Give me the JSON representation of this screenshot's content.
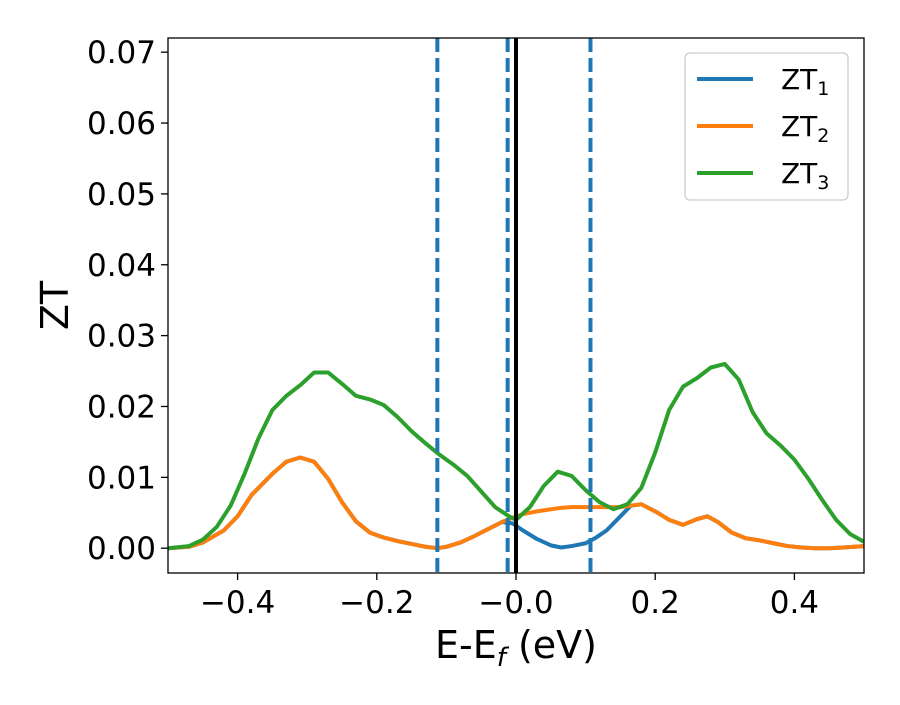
{
  "chart_data": {
    "type": "line",
    "xlabel": "E-E",
    "xlabel_subscript": "f",
    "xlabel_unit": " (eV)",
    "ylabel": "ZT",
    "xlim": [
      -0.5,
      0.5
    ],
    "ylim": [
      -0.0035,
      0.072
    ],
    "x_ticks": [
      -0.4,
      -0.2,
      0.0,
      0.2,
      0.4
    ],
    "x_tick_labels": [
      "−0.4",
      "−0.2",
      "−0.0",
      "0.2",
      "0.4"
    ],
    "y_ticks": [
      0.0,
      0.01,
      0.02,
      0.03,
      0.04,
      0.05,
      0.06,
      0.07
    ],
    "y_tick_labels": [
      "0.00",
      "0.01",
      "0.02",
      "0.03",
      "0.04",
      "0.05",
      "0.06",
      "0.07"
    ],
    "grid": false,
    "legend_position": "top-right",
    "vertical_lines": [
      {
        "x": -0.113,
        "style": "dashed",
        "color": "#1f77b4"
      },
      {
        "x": -0.012,
        "style": "dashed",
        "color": "#1f77b4"
      },
      {
        "x": 0.107,
        "style": "dashed",
        "color": "#1f77b4"
      },
      {
        "x": 0.0,
        "style": "solid",
        "color": "#000000"
      }
    ],
    "series": [
      {
        "name": "ZT",
        "subscript": "1",
        "color": "#1f77b4",
        "x": [
          -0.5,
          -0.47,
          -0.45,
          -0.42,
          -0.4,
          -0.38,
          -0.35,
          -0.33,
          -0.31,
          -0.29,
          -0.27,
          -0.25,
          -0.23,
          -0.21,
          -0.19,
          -0.17,
          -0.15,
          -0.13,
          -0.113,
          -0.1,
          -0.08,
          -0.06,
          -0.04,
          -0.02,
          -0.005,
          0.01,
          0.03,
          0.05,
          0.065,
          0.08,
          0.1,
          0.115,
          0.13,
          0.15,
          0.165,
          0.18,
          0.2,
          0.22,
          0.24,
          0.26,
          0.275,
          0.29,
          0.31,
          0.33,
          0.35,
          0.37,
          0.39,
          0.41,
          0.43,
          0.45,
          0.47,
          0.5
        ],
        "y": [
          0.0,
          0.0002,
          0.0008,
          0.0025,
          0.0045,
          0.0075,
          0.0105,
          0.0122,
          0.0128,
          0.0122,
          0.0098,
          0.0065,
          0.0038,
          0.0022,
          0.0015,
          0.001,
          0.0006,
          0.0002,
          0.0,
          0.0002,
          0.0008,
          0.0017,
          0.0027,
          0.0037,
          0.0035,
          0.0025,
          0.0013,
          0.0004,
          0.0001,
          0.0003,
          0.0007,
          0.0015,
          0.0025,
          0.0045,
          0.006,
          0.0062,
          0.0052,
          0.004,
          0.0033,
          0.0041,
          0.0045,
          0.0037,
          0.0022,
          0.0014,
          0.0011,
          0.0007,
          0.0003,
          0.0001,
          0.0,
          0.0,
          0.0001,
          0.0003
        ]
      },
      {
        "name": "ZT",
        "subscript": "2",
        "color": "#ff7f0e",
        "x": [
          -0.5,
          -0.47,
          -0.45,
          -0.42,
          -0.4,
          -0.38,
          -0.35,
          -0.33,
          -0.31,
          -0.29,
          -0.27,
          -0.25,
          -0.23,
          -0.21,
          -0.19,
          -0.17,
          -0.15,
          -0.13,
          -0.113,
          -0.1,
          -0.08,
          -0.06,
          -0.04,
          -0.02,
          -0.005,
          0.01,
          0.03,
          0.05,
          0.065,
          0.08,
          0.1,
          0.115,
          0.13,
          0.15,
          0.165,
          0.18,
          0.2,
          0.22,
          0.24,
          0.26,
          0.275,
          0.29,
          0.31,
          0.33,
          0.35,
          0.37,
          0.39,
          0.41,
          0.43,
          0.45,
          0.47,
          0.5
        ],
        "y": [
          0.0,
          0.0002,
          0.0008,
          0.0025,
          0.0045,
          0.0075,
          0.0105,
          0.0122,
          0.0128,
          0.0122,
          0.0098,
          0.0065,
          0.0038,
          0.0022,
          0.0015,
          0.001,
          0.0006,
          0.0002,
          0.0,
          0.0002,
          0.0008,
          0.0017,
          0.0027,
          0.0037,
          0.0043,
          0.0048,
          0.0052,
          0.0055,
          0.0057,
          0.0058,
          0.0058,
          0.0058,
          0.0058,
          0.0058,
          0.006,
          0.0062,
          0.0052,
          0.004,
          0.0033,
          0.0041,
          0.0045,
          0.0037,
          0.0022,
          0.0014,
          0.0011,
          0.0007,
          0.0003,
          0.0001,
          0.0,
          0.0,
          0.0001,
          0.0003
        ]
      },
      {
        "name": "ZT",
        "subscript": "3",
        "color": "#2ca02c",
        "x": [
          -0.5,
          -0.47,
          -0.45,
          -0.43,
          -0.41,
          -0.39,
          -0.37,
          -0.35,
          -0.33,
          -0.31,
          -0.29,
          -0.27,
          -0.25,
          -0.23,
          -0.21,
          -0.19,
          -0.17,
          -0.15,
          -0.13,
          -0.11,
          -0.09,
          -0.07,
          -0.05,
          -0.03,
          -0.01,
          0.0,
          0.02,
          0.04,
          0.06,
          0.08,
          0.1,
          0.12,
          0.14,
          0.16,
          0.18,
          0.2,
          0.22,
          0.24,
          0.26,
          0.28,
          0.3,
          0.32,
          0.34,
          0.36,
          0.38,
          0.4,
          0.42,
          0.44,
          0.46,
          0.48,
          0.5
        ],
        "y": [
          0.0,
          0.0003,
          0.0012,
          0.003,
          0.006,
          0.0105,
          0.0155,
          0.0195,
          0.0215,
          0.023,
          0.0248,
          0.0248,
          0.0232,
          0.0215,
          0.021,
          0.0202,
          0.0185,
          0.0165,
          0.0148,
          0.0132,
          0.0118,
          0.0102,
          0.008,
          0.0058,
          0.0045,
          0.004,
          0.0058,
          0.0088,
          0.0108,
          0.0102,
          0.0082,
          0.0065,
          0.0055,
          0.0062,
          0.0085,
          0.0135,
          0.0195,
          0.0228,
          0.024,
          0.0255,
          0.026,
          0.0238,
          0.0192,
          0.0162,
          0.0145,
          0.0125,
          0.0098,
          0.0068,
          0.004,
          0.002,
          0.0009
        ]
      }
    ]
  }
}
